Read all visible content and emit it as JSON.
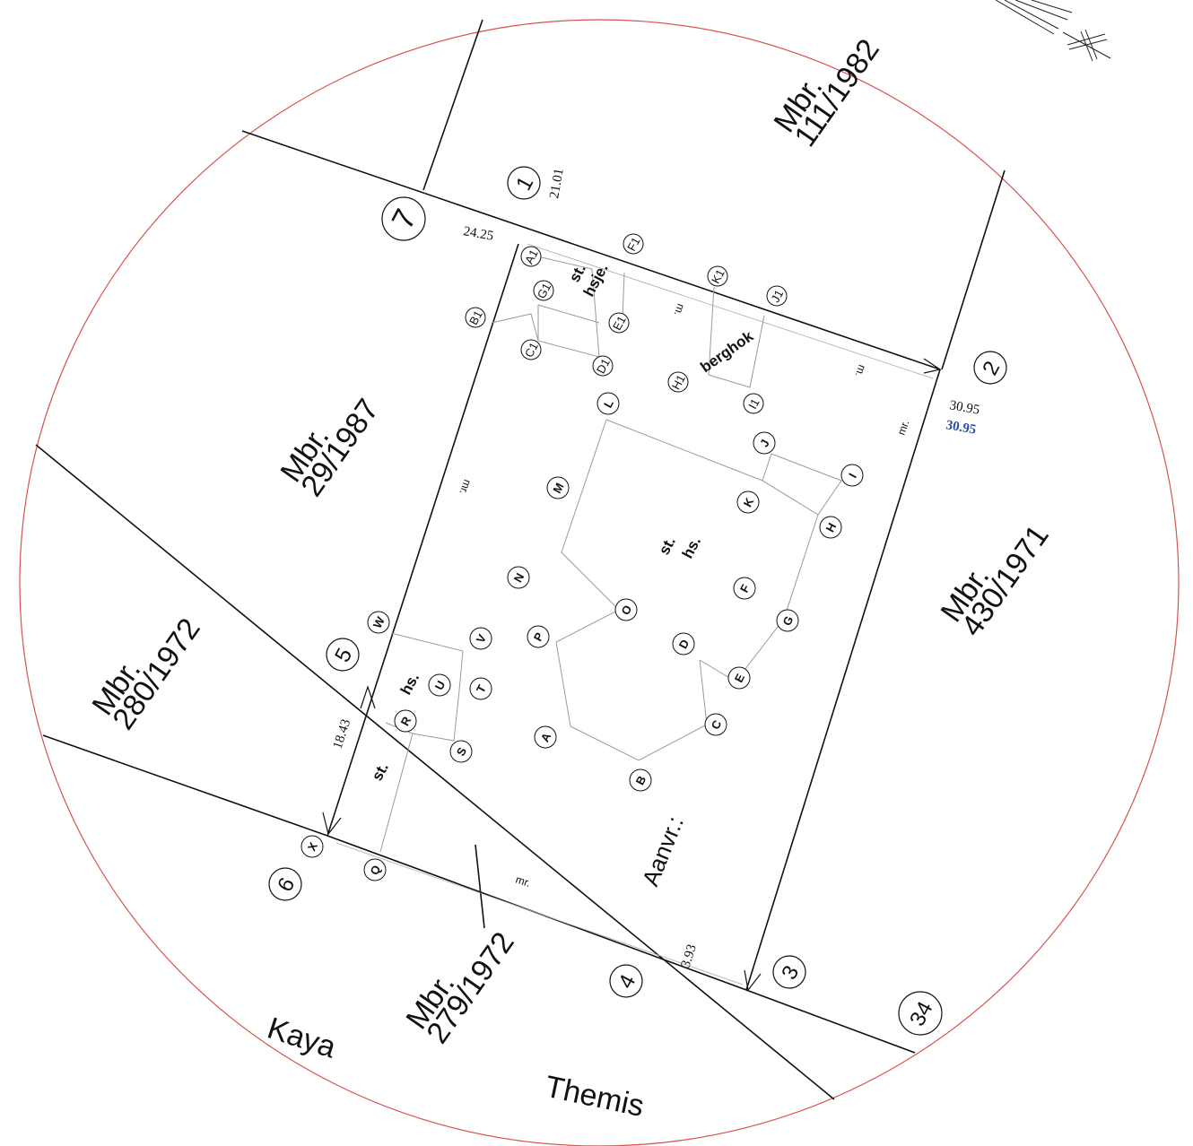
{
  "parcels": {
    "p111_1982": [
      "Mbr.",
      "111/1982"
    ],
    "p29_1987": [
      "Mbr.",
      "29/1987"
    ],
    "p430_1971": [
      "Mbr.",
      "430/1971"
    ],
    "p280_1972": [
      "Mbr.",
      "280/1972"
    ],
    "p279_1972": [
      "Mbr.",
      "279/1972"
    ]
  },
  "streets": {
    "kaya": "Kaya",
    "themis": "Themis"
  },
  "corner_marks": {
    "c1": "1",
    "c2": "2",
    "c3": "3",
    "c4": "4",
    "c5": "5",
    "c6": "6",
    "c7": "7",
    "c34": "34"
  },
  "measurements": {
    "m21_01": "21.01",
    "m24_25": "24.25",
    "m30_95": "30.95",
    "m30_95_blue": "30.95",
    "m18_43": "18.43",
    "m3_93": "3.93"
  },
  "labels": {
    "st_hsje_1": "st.",
    "st_hsje_2": "hsje.",
    "berghok": "berghok",
    "st_hs_1": "st.",
    "st_hs_2": "hs.",
    "hs": "hs.",
    "st": "st.",
    "aanvr": "Aanvr.:",
    "mr_1": "mr.",
    "mr_2": "mr.",
    "mr_3": "mr.",
    "m_1": "m.",
    "m_2": "m."
  },
  "points": {
    "A1": "A1",
    "B1": "B1",
    "C1": "C1",
    "D1": "D1",
    "E1": "E1",
    "F1": "F1",
    "G1": "G1",
    "H1": "H1",
    "I1": "I1",
    "J1": "J1",
    "K1": "K1",
    "A": "A",
    "B": "B",
    "C": "C",
    "D": "D",
    "E": "E",
    "F": "F",
    "G": "G",
    "H": "H",
    "I": "I",
    "J": "J",
    "K": "K",
    "L": "L",
    "M": "M",
    "N": "N",
    "O": "O",
    "P": "P",
    "Q": "Q",
    "R": "R",
    "S": "S",
    "T": "T",
    "U": "U",
    "V": "V",
    "W": "W",
    "X": "X"
  },
  "colors": {
    "circle": "#d9534f",
    "lines": "#111111",
    "building": "#9a9a9a",
    "accent_measure": "#2a4fa8"
  }
}
